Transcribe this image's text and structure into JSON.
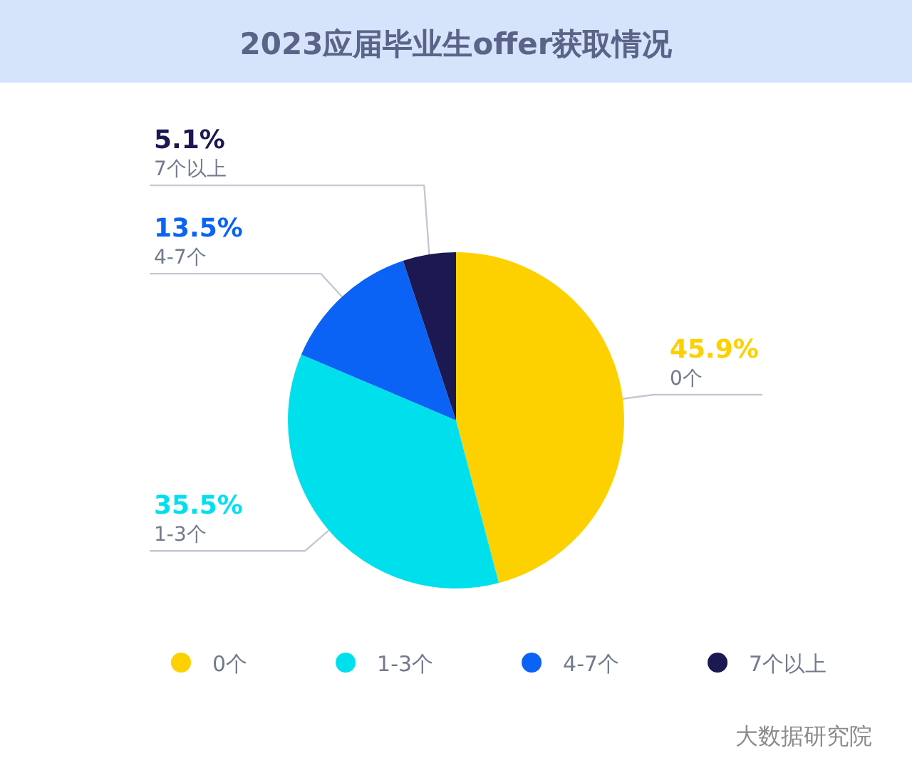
{
  "chart_data": {
    "type": "pie",
    "title": "2023应届毕业生offer获取情况",
    "categories": [
      "0个",
      "1-3个",
      "4-7个",
      "7个以上"
    ],
    "values": [
      45.9,
      35.5,
      13.5,
      5.1
    ],
    "colors": [
      "#fdd000",
      "#00e0ec",
      "#0a63f4",
      "#1b1852"
    ],
    "value_labels": [
      "45.9%",
      "35.5%",
      "13.5%",
      "5.1%"
    ],
    "legend": "bottom",
    "annotations": [
      "大数据研究院"
    ]
  }
}
